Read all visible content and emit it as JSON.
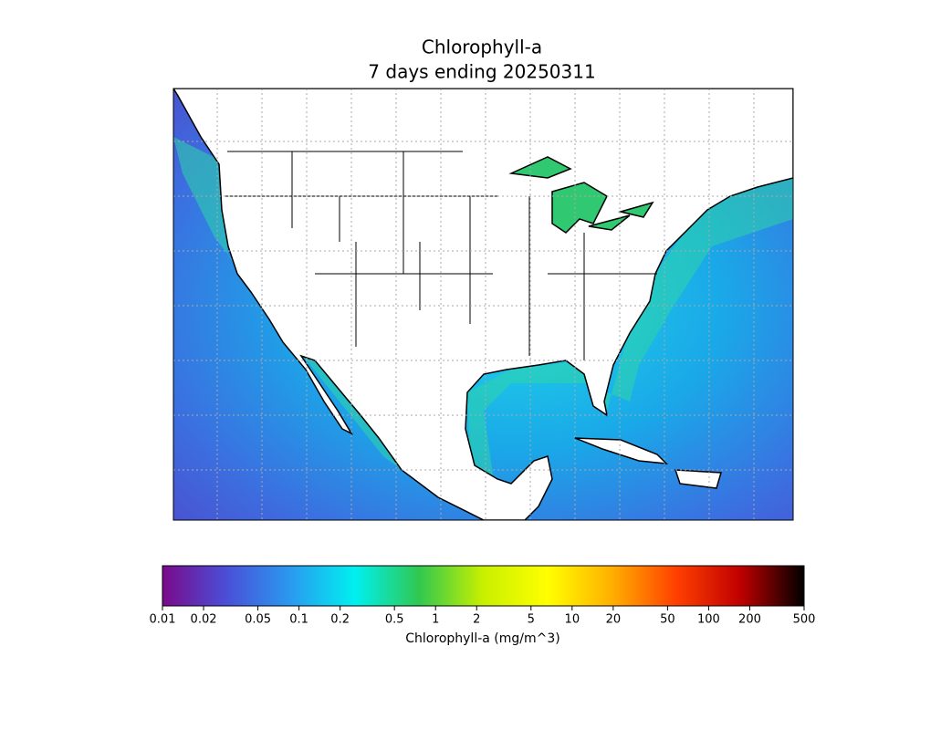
{
  "title": [
    "Chlorophyll-a",
    "7 days ending 20250311"
  ],
  "colorbar": {
    "label": "Chlorophyll-a (mg/m^3)",
    "scale": "log",
    "lim": [
      0.01,
      500
    ],
    "ticks": [
      0.01,
      0.02,
      0.05,
      0.1,
      0.2,
      0.5,
      1,
      2,
      5,
      10,
      20,
      50,
      100,
      200,
      500
    ],
    "colors": [
      "#7a0a8a",
      "#4a4fd8",
      "#2a9af0",
      "#00f0f0",
      "#30c850",
      "#c8f000",
      "#ffff00",
      "#ffb000",
      "#ff4000",
      "#c00000",
      "#000000"
    ]
  }
}
